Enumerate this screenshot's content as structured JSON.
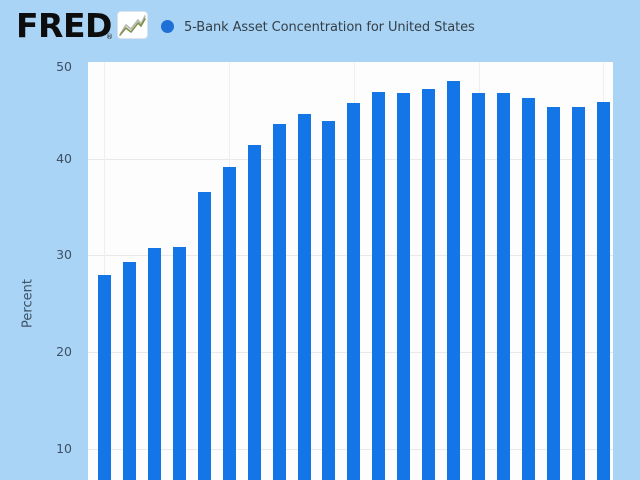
{
  "header": {
    "logo_text": "FRED",
    "registered_mark": "®",
    "logo_chart_icon": "zigzag-line-chart",
    "legend": {
      "marker_icon": "filled-circle",
      "label": "5-Bank Asset Concentration for United States"
    }
  },
  "y_axis": {
    "title": "Percent",
    "ticks": [
      50,
      40,
      30,
      20,
      10
    ]
  },
  "chart_data": {
    "type": "bar",
    "title": "5-Bank Asset Concentration for United States",
    "xlabel": "",
    "ylabel": "Percent",
    "ylim": [
      0,
      50
    ],
    "y_ticks": [
      10,
      20,
      30,
      40,
      50
    ],
    "grid": true,
    "legend_position": "top-left",
    "bar_count": 21,
    "values": [
      28.0,
      29.3,
      30.8,
      30.9,
      36.6,
      39.1,
      41.4,
      43.6,
      44.6,
      43.9,
      45.8,
      46.9,
      46.8,
      47.2,
      48.0,
      46.8,
      46.8,
      46.3,
      45.3,
      45.3,
      45.9
    ],
    "note_bottom_cropped": true
  },
  "colors": {
    "page_background": "#aad4f5",
    "plot_background": "#fdfdfd",
    "bar": "#1476e6",
    "legend_marker": "#1e6fd6",
    "gridline": "#e9e9e9",
    "vertical_gridline": "#efefef",
    "axis_text": "#3d5166",
    "title_text": "#333f48",
    "logo_text": "#0d0d0d",
    "icon_line_green": "#7f9149",
    "icon_line_gray": "#b3b8ad"
  }
}
